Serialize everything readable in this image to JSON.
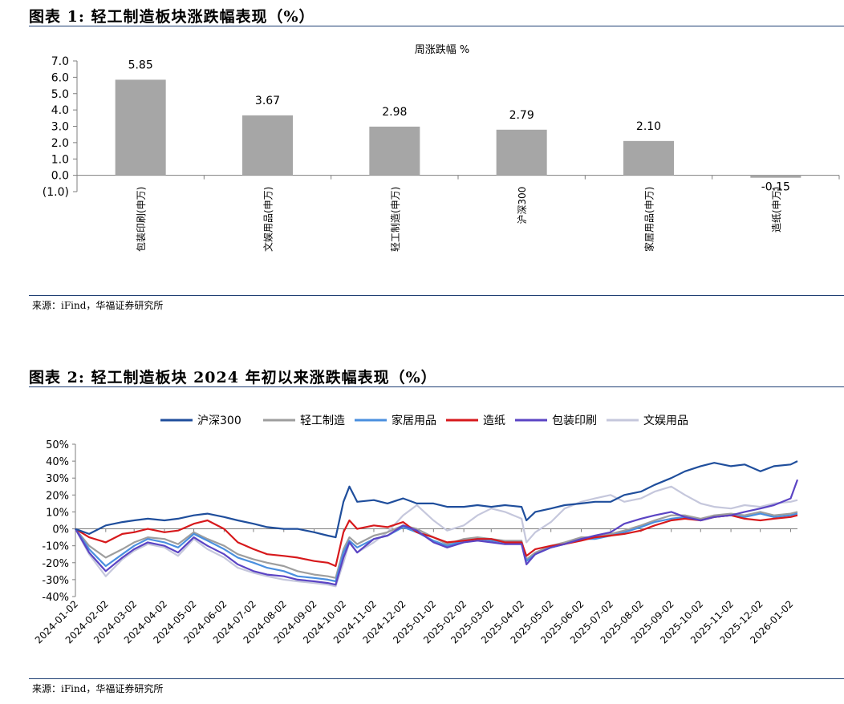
{
  "figure1": {
    "title": "图表 1:  轻工制造板块涨跌幅表现（%）",
    "source": "来源：iFind，华福证券研究所",
    "chart_data": {
      "type": "bar",
      "title": "周涨跌幅 %",
      "categories": [
        "包装印刷(申万)",
        "文娱用品(申万)",
        "轻工制造(申万)",
        "沪深300",
        "家居用品(申万)",
        "造纸(申万)"
      ],
      "values": [
        5.85,
        3.67,
        2.98,
        2.79,
        2.1,
        -0.15
      ],
      "value_labels": [
        "5.85",
        "3.67",
        "2.98",
        "2.79",
        "2.10",
        "-0.15"
      ],
      "ylim": [
        -1.0,
        7.0
      ],
      "yticks": [
        7.0,
        6.0,
        5.0,
        4.0,
        3.0,
        2.0,
        1.0,
        0.0,
        -1.0
      ],
      "ytick_labels": [
        "7.0",
        "6.0",
        "5.0",
        "4.0",
        "3.0",
        "2.0",
        "1.0",
        "0.0",
        "(1.0)"
      ],
      "bar_color": "#a6a6a6",
      "grid": false
    }
  },
  "figure2": {
    "title": "图表 2:  轻工制造板块 2024 年初以来涨跌幅表现（%）",
    "source": "来源：iFind，华福证券研究所",
    "chart_data": {
      "type": "line",
      "legend_position": "top",
      "ylim": [
        -40,
        50
      ],
      "yticks": [
        50,
        40,
        30,
        20,
        10,
        0,
        -10,
        -20,
        -30,
        -40
      ],
      "ytick_labels": [
        "50%",
        "40%",
        "30%",
        "20%",
        "10%",
        "0%",
        "-10%",
        "-20%",
        "-30%",
        "-40%"
      ],
      "x_tick_labels": [
        "2024-01-02",
        "2024-02-02",
        "2024-03-02",
        "2024-04-02",
        "2024-05-02",
        "2024-06-02",
        "2024-07-02",
        "2024-08-02",
        "2024-09-02",
        "2024-10-02",
        "2024-11-02",
        "2024-12-02",
        "2025-01-02",
        "2025-02-02",
        "2025-03-02",
        "2025-04-02",
        "2025-05-02",
        "2025-06-02",
        "2025-07-02",
        "2025-08-02",
        "2025-09-02",
        "2025-10-02",
        "2025-11-02",
        "2025-12-02",
        "2026-01-02"
      ],
      "x": [
        "2024-01-02",
        "2024-01-16",
        "2024-02-02",
        "2024-02-19",
        "2024-03-02",
        "2024-03-16",
        "2024-04-02",
        "2024-04-16",
        "2024-05-02",
        "2024-05-16",
        "2024-06-02",
        "2024-06-16",
        "2024-07-02",
        "2024-07-16",
        "2024-08-02",
        "2024-08-16",
        "2024-09-02",
        "2024-09-16",
        "2024-09-24",
        "2024-10-02",
        "2024-10-08",
        "2024-10-16",
        "2024-11-02",
        "2024-11-16",
        "2024-12-02",
        "2024-12-16",
        "2025-01-02",
        "2025-01-16",
        "2025-02-02",
        "2025-02-16",
        "2025-03-02",
        "2025-03-16",
        "2025-04-02",
        "2025-04-07",
        "2025-04-16",
        "2025-05-02",
        "2025-05-16",
        "2025-06-02",
        "2025-06-16",
        "2025-07-02",
        "2025-07-16",
        "2025-08-02",
        "2025-08-16",
        "2025-09-02",
        "2025-09-16",
        "2025-10-02",
        "2025-10-16",
        "2025-11-02",
        "2025-11-16",
        "2025-12-02",
        "2025-12-16",
        "2026-01-02",
        "2026-01-09"
      ],
      "series": [
        {
          "name": "沪深300",
          "color": "#1f4e9c",
          "values": [
            0,
            -3,
            2,
            4,
            5,
            6,
            5,
            6,
            8,
            9,
            7,
            5,
            3,
            1,
            0,
            0,
            -2,
            -4,
            -5,
            16,
            25,
            16,
            17,
            15,
            18,
            15,
            15,
            13,
            13,
            14,
            13,
            14,
            13,
            5,
            10,
            12,
            14,
            15,
            16,
            16,
            20,
            22,
            26,
            30,
            34,
            37,
            39,
            37,
            38,
            34,
            37,
            38,
            40
          ]
        },
        {
          "name": "轻工制造",
          "color": "#9e9e9e",
          "values": [
            0,
            -10,
            -17,
            -12,
            -8,
            -5,
            -6,
            -9,
            -2,
            -6,
            -10,
            -15,
            -18,
            -20,
            -22,
            -25,
            -27,
            -28,
            -29,
            -12,
            -5,
            -9,
            -4,
            -2,
            2,
            0,
            -5,
            -9,
            -6,
            -5,
            -6,
            -7,
            -7,
            -18,
            -14,
            -10,
            -8,
            -5,
            -5,
            -3,
            -1,
            2,
            5,
            8,
            8,
            6,
            8,
            9,
            8,
            10,
            8,
            9,
            10
          ]
        },
        {
          "name": "家居用品",
          "color": "#4a8fdf",
          "values": [
            0,
            -12,
            -22,
            -15,
            -10,
            -6,
            -8,
            -11,
            -3,
            -7,
            -12,
            -17,
            -20,
            -23,
            -25,
            -28,
            -29,
            -30,
            -31,
            -14,
            -7,
            -11,
            -6,
            -4,
            1,
            -2,
            -7,
            -10,
            -7,
            -6,
            -7,
            -8,
            -8,
            -19,
            -15,
            -11,
            -9,
            -6,
            -6,
            -4,
            -2,
            1,
            4,
            6,
            7,
            5,
            7,
            8,
            7,
            9,
            7,
            8,
            9
          ]
        },
        {
          "name": "造纸",
          "color": "#d7191c",
          "values": [
            0,
            -5,
            -8,
            -3,
            -2,
            0,
            -2,
            -1,
            3,
            5,
            0,
            -8,
            -12,
            -15,
            -16,
            -17,
            -19,
            -20,
            -22,
            -2,
            5,
            0,
            2,
            1,
            4,
            -2,
            -5,
            -8,
            -7,
            -6,
            -6,
            -8,
            -8,
            -16,
            -12,
            -10,
            -9,
            -7,
            -5,
            -4,
            -3,
            -1,
            2,
            5,
            6,
            5,
            7,
            8,
            6,
            5,
            6,
            7,
            8
          ]
        },
        {
          "name": "包装印刷",
          "color": "#5b44c4",
          "values": [
            0,
            -14,
            -25,
            -17,
            -12,
            -8,
            -10,
            -14,
            -5,
            -10,
            -15,
            -21,
            -25,
            -27,
            -28,
            -30,
            -31,
            -32,
            -33,
            -17,
            -8,
            -14,
            -6,
            -4,
            2,
            -1,
            -8,
            -11,
            -8,
            -7,
            -8,
            -9,
            -9,
            -21,
            -15,
            -11,
            -9,
            -6,
            -4,
            -2,
            3,
            6,
            8,
            10,
            7,
            5,
            7,
            8,
            10,
            12,
            14,
            18,
            29
          ]
        },
        {
          "name": "文娱用品",
          "color": "#c5c7dc",
          "values": [
            0,
            -15,
            -28,
            -18,
            -13,
            -9,
            -11,
            -16,
            -6,
            -12,
            -17,
            -23,
            -26,
            -28,
            -30,
            -31,
            -32,
            -33,
            -34,
            -20,
            -8,
            -14,
            -8,
            -2,
            8,
            14,
            5,
            -1,
            2,
            8,
            12,
            10,
            6,
            -8,
            -2,
            4,
            12,
            16,
            18,
            20,
            16,
            18,
            22,
            25,
            20,
            15,
            13,
            12,
            14,
            13,
            15,
            16,
            17
          ]
        }
      ]
    }
  }
}
